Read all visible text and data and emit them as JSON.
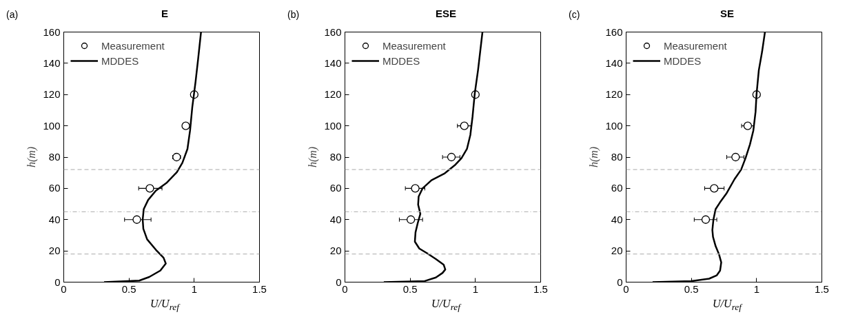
{
  "chart_data": [
    {
      "type": "line",
      "title": "E",
      "xlabel": "U/U$_{ref}$",
      "ylabel": "h(m)",
      "annotations": [
        "(a)"
      ],
      "xlim": [
        0,
        1.5
      ],
      "ylim": [
        0,
        160
      ],
      "xticks": [
        0,
        0.5,
        1,
        1.5
      ],
      "yticks": [
        0,
        20,
        40,
        60,
        80,
        100,
        120,
        140,
        160
      ],
      "grid": false,
      "legend": "top left",
      "ref_lines": [
        {
          "axis": "y",
          "value": 72,
          "color": "#bbbbbb",
          "line_style": "dashed"
        },
        {
          "axis": "y",
          "value": 45,
          "color": "#bbbbbb",
          "line_style": "dashdot"
        },
        {
          "axis": "y",
          "value": 18,
          "color": "#bbbbbb",
          "line_style": "dashed"
        }
      ],
      "series": [
        {
          "name": "Measurement",
          "type": "scatter",
          "marker": "circle",
          "color": "#000000",
          "x": [
            1.0,
            0.935,
            0.865,
            0.66,
            0.56
          ],
          "values": [
            120,
            100,
            80,
            60,
            40
          ],
          "xerrors": [
            null,
            null,
            0.03,
            [
              0.574,
              0.753
            ],
            [
              0.466,
              0.669
            ]
          ]
        },
        {
          "name": "MDDES",
          "line_style": "solid",
          "color": "#000000",
          "x": [
            0.309,
            0.579,
            0.655,
            0.74,
            0.782,
            0.765,
            0.706,
            0.639,
            0.61,
            0.605,
            0.613,
            0.647,
            0.706,
            0.791,
            0.867,
            0.909,
            0.948,
            0.968,
            0.985,
            1.01,
            1.03,
            1.052
          ],
          "values": [
            0,
            1.0,
            3.3,
            7.4,
            11.9,
            15.6,
            20.7,
            27.4,
            34.1,
            40,
            46.7,
            52.6,
            58.5,
            63.7,
            70.4,
            76.3,
            85.2,
            97,
            111.9,
            128.1,
            142.9,
            160
          ]
        }
      ]
    },
    {
      "type": "line",
      "title": "ESE",
      "xlabel": "U/U$_{ref}$",
      "ylabel": "h(m)",
      "annotations": [
        "(b)"
      ],
      "xlim": [
        0,
        1.5
      ],
      "ylim": [
        0,
        160
      ],
      "xticks": [
        0,
        0.5,
        1,
        1.5
      ],
      "yticks": [
        0,
        20,
        40,
        60,
        80,
        100,
        120,
        140,
        160
      ],
      "grid": false,
      "legend": "top left",
      "ref_lines": [
        {
          "axis": "y",
          "value": 72,
          "color": "#bbbbbb",
          "line_style": "dashed"
        },
        {
          "axis": "y",
          "value": 45,
          "color": "#bbbbbb",
          "line_style": "dashdot"
        },
        {
          "axis": "y",
          "value": 18,
          "color": "#bbbbbb",
          "line_style": "dashed"
        }
      ],
      "series": [
        {
          "name": "Measurement",
          "type": "scatter",
          "marker": "circle",
          "color": "#000000",
          "x": [
            1.0,
            0.915,
            0.816,
            0.539,
            0.505
          ],
          "values": [
            120,
            100,
            80,
            60,
            40
          ],
          "xerrors": [
            null,
            [
              0.862,
              0.966
            ],
            [
              0.748,
              0.881
            ],
            [
              0.463,
              0.612
            ],
            [
              0.417,
              0.595
            ]
          ]
        },
        {
          "name": "MDDES",
          "line_style": "solid",
          "color": "#000000",
          "x": [
            0.298,
            0.612,
            0.697,
            0.748,
            0.769,
            0.757,
            0.697,
            0.629,
            0.57,
            0.536,
            0.541,
            0.558,
            0.578,
            0.561,
            0.565,
            0.595,
            0.663,
            0.765,
            0.842,
            0.893,
            0.935,
            0.961,
            0.978,
            0.995,
            1.02,
            1.054
          ],
          "values": [
            0,
            0.7,
            3.0,
            5.9,
            8.1,
            11.1,
            14.8,
            18.5,
            21.5,
            25.9,
            31.9,
            37.8,
            43.7,
            49.6,
            54.8,
            60,
            65.2,
            69.6,
            74.8,
            79.3,
            85.2,
            94.1,
            105.9,
            120.7,
            135.6,
            160
          ]
        }
      ]
    },
    {
      "type": "line",
      "title": "SE",
      "xlabel": "U/U$_{ref}$",
      "ylabel": "h(m)",
      "annotations": [
        "(c)"
      ],
      "xlim": [
        0,
        1.5
      ],
      "ylim": [
        0,
        160
      ],
      "xticks": [
        0,
        0.5,
        1,
        1.5
      ],
      "yticks": [
        0,
        20,
        40,
        60,
        80,
        100,
        120,
        140,
        160
      ],
      "grid": false,
      "legend": "top left",
      "ref_lines": [
        {
          "axis": "y",
          "value": 72,
          "color": "#bbbbbb",
          "line_style": "dashed"
        },
        {
          "axis": "y",
          "value": 45,
          "color": "#bbbbbb",
          "line_style": "dashdot"
        },
        {
          "axis": "y",
          "value": 18,
          "color": "#bbbbbb",
          "line_style": "dashed"
        }
      ],
      "series": [
        {
          "name": "Measurement",
          "type": "scatter",
          "marker": "circle",
          "color": "#000000",
          "x": [
            1.0,
            0.932,
            0.839,
            0.675,
            0.61
          ],
          "values": [
            120,
            100,
            80,
            60,
            40
          ],
          "xerrors": [
            null,
            [
              0.885,
              0.98
            ],
            [
              0.771,
              0.903
            ],
            [
              0.602,
              0.751
            ],
            [
              0.522,
              0.695
            ]
          ]
        },
        {
          "name": "MDDES",
          "line_style": "solid",
          "color": "#000000",
          "x": [
            0.203,
            0.5,
            0.636,
            0.695,
            0.72,
            0.729,
            0.712,
            0.686,
            0.666,
            0.661,
            0.669,
            0.686,
            0.72,
            0.771,
            0.831,
            0.881,
            0.915,
            0.949,
            0.975,
            0.992,
            1.0,
            1.017,
            1.042,
            1.064
          ],
          "values": [
            0,
            0.7,
            2.2,
            4.4,
            7.4,
            12.6,
            17.8,
            23,
            28.9,
            33.3,
            40,
            46.7,
            51.1,
            57,
            65.9,
            71.9,
            79.3,
            88.1,
            97,
            108.9,
            120.7,
            135.6,
            147.4,
            160
          ]
        }
      ]
    }
  ]
}
